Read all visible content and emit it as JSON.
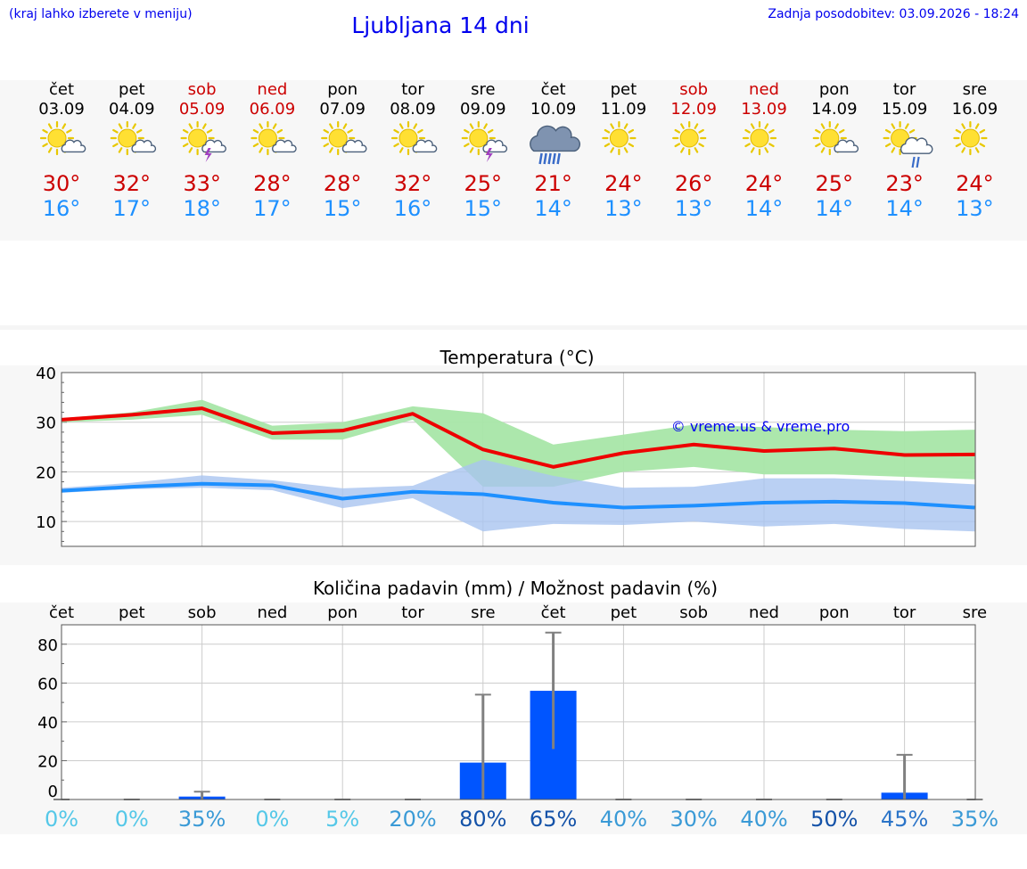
{
  "header": {
    "hint": "(kraj lahko izberete v meniju)",
    "title": "Ljubljana 14 dni",
    "updated": "Zadnja posodobitev: 03.09.2026 - 18:24"
  },
  "days": [
    {
      "name": "čet",
      "date": "03.09",
      "weekend": false,
      "icon": "sun-cloud-icon",
      "tmax": "30°",
      "tmin": "16°"
    },
    {
      "name": "pet",
      "date": "04.09",
      "weekend": false,
      "icon": "sun-cloud-icon",
      "tmax": "32°",
      "tmin": "17°"
    },
    {
      "name": "sob",
      "date": "05.09",
      "weekend": true,
      "icon": "sun-cloud-storm-icon",
      "tmax": "33°",
      "tmin": "18°"
    },
    {
      "name": "ned",
      "date": "06.09",
      "weekend": true,
      "icon": "sun-cloud-icon",
      "tmax": "28°",
      "tmin": "17°"
    },
    {
      "name": "pon",
      "date": "07.09",
      "weekend": false,
      "icon": "sun-cloud-icon",
      "tmax": "28°",
      "tmin": "15°"
    },
    {
      "name": "tor",
      "date": "08.09",
      "weekend": false,
      "icon": "sun-cloud-icon",
      "tmax": "32°",
      "tmin": "16°"
    },
    {
      "name": "sre",
      "date": "09.09",
      "weekend": false,
      "icon": "sun-cloud-storm-icon",
      "tmax": "25°",
      "tmin": "15°"
    },
    {
      "name": "čet",
      "date": "10.09",
      "weekend": false,
      "icon": "rain-cloud-icon",
      "tmax": "21°",
      "tmin": "14°"
    },
    {
      "name": "pet",
      "date": "11.09",
      "weekend": false,
      "icon": "sun-icon",
      "tmax": "24°",
      "tmin": "13°"
    },
    {
      "name": "sob",
      "date": "12.09",
      "weekend": true,
      "icon": "sun-icon",
      "tmax": "26°",
      "tmin": "13°"
    },
    {
      "name": "ned",
      "date": "13.09",
      "weekend": true,
      "icon": "sun-icon",
      "tmax": "24°",
      "tmin": "14°"
    },
    {
      "name": "pon",
      "date": "14.09",
      "weekend": false,
      "icon": "sun-cloud-icon",
      "tmax": "25°",
      "tmin": "14°"
    },
    {
      "name": "tor",
      "date": "15.09",
      "weekend": false,
      "icon": "sun-cloud-rain-icon",
      "tmax": "23°",
      "tmin": "14°"
    },
    {
      "name": "sre",
      "date": "16.09",
      "weekend": false,
      "icon": "sun-icon",
      "tmax": "24°",
      "tmin": "13°"
    }
  ],
  "colors": {
    "max_line": "#ee0000",
    "max_band": "#a8e6a8",
    "min_line": "#1e90ff",
    "min_band": "#a9c4f0",
    "bar": "#0055ff",
    "errorbar": "#808080",
    "weekend": "#cc0000",
    "link": "#0000ee"
  },
  "chart_data": [
    {
      "type": "line",
      "title": "Temperatura (°C)",
      "watermark": "© vreme.us & vreme.pro",
      "x": [
        "03.09",
        "04.09",
        "05.09",
        "06.09",
        "07.09",
        "08.09",
        "09.09",
        "10.09",
        "11.09",
        "12.09",
        "13.09",
        "14.09",
        "15.09",
        "16.09"
      ],
      "ylim": [
        5,
        40
      ],
      "yticks": [
        10,
        20,
        30,
        40
      ],
      "series": [
        {
          "values": [
            30.5,
            31.5,
            32.8,
            27.8,
            28.3,
            31.7,
            24.5,
            21,
            23.8,
            25.5,
            24.2,
            24.7,
            23.4,
            23.5
          ],
          "band_low": [
            30,
            30.5,
            31.5,
            26.5,
            26.5,
            30.5,
            17,
            17,
            20,
            21,
            19.5,
            19.5,
            19,
            18.5
          ],
          "band_high": [
            30.8,
            32,
            34.5,
            29.3,
            30,
            33.2,
            31.8,
            25.5,
            27.5,
            29.5,
            29,
            28.5,
            28.2,
            28.5
          ]
        },
        {
          "values": [
            16.2,
            17,
            17.6,
            17.3,
            14.6,
            16,
            15.5,
            13.8,
            12.8,
            13.2,
            13.8,
            14,
            13.7,
            12.8
          ],
          "band_low": [
            15.8,
            16.5,
            16.8,
            16.3,
            12.7,
            14.7,
            8,
            9.5,
            9.3,
            10,
            9,
            9.5,
            8.5,
            8
          ],
          "band_high": [
            16.8,
            17.8,
            19.3,
            18.3,
            16.7,
            17.2,
            22.5,
            19.2,
            16.8,
            17,
            18.7,
            18.7,
            18.2,
            17.5
          ]
        }
      ]
    },
    {
      "type": "bar",
      "title": "Količina padavin (mm) / Možnost padavin (%)",
      "categories": [
        "čet",
        "pet",
        "sob",
        "ned",
        "pon",
        "tor",
        "sre",
        "čet",
        "pet",
        "sob",
        "ned",
        "pon",
        "tor",
        "sre"
      ],
      "ylim": [
        0,
        90
      ],
      "yticks": [
        0,
        20,
        40,
        60,
        80
      ],
      "values": [
        0,
        0,
        1.5,
        0,
        0,
        0,
        19,
        56,
        0,
        0,
        0,
        0,
        3.5,
        0
      ],
      "err_low": [
        0,
        0,
        0,
        0,
        0,
        0,
        0,
        26,
        0,
        0,
        0,
        0,
        0,
        0
      ],
      "err_high": [
        0,
        0,
        4,
        0,
        0,
        0,
        54,
        86,
        0,
        0,
        0,
        0,
        23,
        0
      ],
      "probabilities": [
        "0%",
        "0%",
        "35%",
        "0%",
        "5%",
        "20%",
        "80%",
        "65%",
        "40%",
        "30%",
        "40%",
        "50%",
        "45%",
        "35%"
      ],
      "probability_values": [
        0,
        0,
        35,
        0,
        5,
        20,
        80,
        65,
        40,
        30,
        40,
        50,
        45,
        35
      ]
    }
  ]
}
